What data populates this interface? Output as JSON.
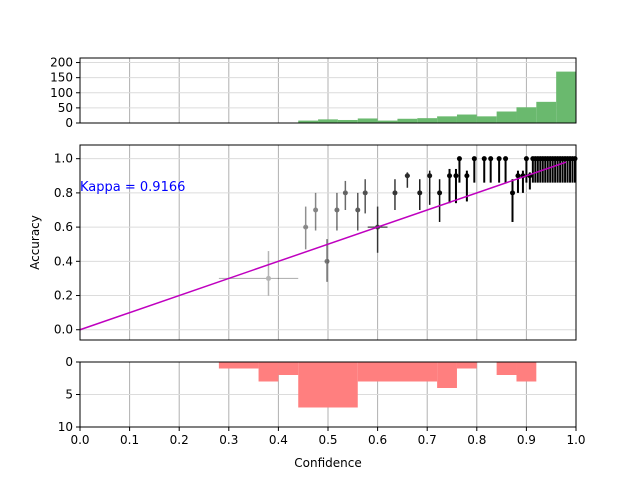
{
  "chart_data": [
    {
      "type": "bar",
      "panel": "confidence-histogram-correct",
      "color": "#6ab96e",
      "ylim": [
        0,
        215
      ],
      "yticks": [
        "0",
        "50",
        "100",
        "150",
        "200"
      ],
      "bins": [
        {
          "x0": 0.44,
          "x1": 0.48,
          "value": 8
        },
        {
          "x0": 0.48,
          "x1": 0.52,
          "value": 12
        },
        {
          "x0": 0.52,
          "x1": 0.56,
          "value": 10
        },
        {
          "x0": 0.56,
          "x1": 0.6,
          "value": 15
        },
        {
          "x0": 0.6,
          "x1": 0.64,
          "value": 8
        },
        {
          "x0": 0.64,
          "x1": 0.68,
          "value": 14
        },
        {
          "x0": 0.68,
          "x1": 0.72,
          "value": 16
        },
        {
          "x0": 0.72,
          "x1": 0.76,
          "value": 22
        },
        {
          "x0": 0.76,
          "x1": 0.8,
          "value": 28
        },
        {
          "x0": 0.8,
          "x1": 0.84,
          "value": 22
        },
        {
          "x0": 0.84,
          "x1": 0.88,
          "value": 38
        },
        {
          "x0": 0.88,
          "x1": 0.92,
          "value": 52
        },
        {
          "x0": 0.92,
          "x1": 0.96,
          "value": 70
        },
        {
          "x0": 0.96,
          "x1": 1.0,
          "value": 170
        }
      ]
    },
    {
      "type": "scatter",
      "panel": "reliability-diagram",
      "ylabel": "Accuracy",
      "xlim": [
        0,
        1
      ],
      "ylim": [
        -0.06,
        1.08
      ],
      "yticks": [
        "0.0",
        "0.2",
        "0.4",
        "0.6",
        "0.8",
        "1.0"
      ],
      "annotation": "Kappa = 0.9166",
      "annotation_color": "#0000ff",
      "line_color": "#bf00bf",
      "line": [
        [
          0,
          0
        ],
        [
          0.98,
          0.98
        ]
      ],
      "points": [
        {
          "x": 0.38,
          "y": 0.3,
          "ylo": 0.2,
          "yhi": 0.46,
          "xlo": 0.28,
          "xhi": 0.44
        },
        {
          "x": 0.455,
          "y": 0.6,
          "ylo": 0.47,
          "yhi": 0.72
        },
        {
          "x": 0.475,
          "y": 0.7,
          "ylo": 0.58,
          "yhi": 0.8
        },
        {
          "x": 0.498,
          "y": 0.4,
          "ylo": 0.28,
          "yhi": 0.53
        },
        {
          "x": 0.518,
          "y": 0.7,
          "ylo": 0.58,
          "yhi": 0.8
        },
        {
          "x": 0.535,
          "y": 0.8,
          "ylo": 0.7,
          "yhi": 0.87
        },
        {
          "x": 0.56,
          "y": 0.7,
          "ylo": 0.58,
          "yhi": 0.8
        },
        {
          "x": 0.575,
          "y": 0.8,
          "ylo": 0.68,
          "yhi": 0.88
        },
        {
          "x": 0.6,
          "y": 0.6,
          "ylo": 0.45,
          "yhi": 0.72,
          "xlo": 0.58,
          "xhi": 0.62
        },
        {
          "x": 0.635,
          "y": 0.8,
          "ylo": 0.7,
          "yhi": 0.88
        },
        {
          "x": 0.66,
          "y": 0.9,
          "ylo": 0.83,
          "yhi": 0.92,
          "xlo": 0.655,
          "xhi": 0.665
        },
        {
          "x": 0.685,
          "y": 0.8,
          "ylo": 0.7,
          "yhi": 0.88
        },
        {
          "x": 0.705,
          "y": 0.9,
          "ylo": 0.73,
          "yhi": 0.93
        },
        {
          "x": 0.725,
          "y": 0.8,
          "ylo": 0.63,
          "yhi": 0.88
        },
        {
          "x": 0.745,
          "y": 0.9,
          "ylo": 0.74,
          "yhi": 0.94
        },
        {
          "x": 0.758,
          "y": 0.9,
          "ylo": 0.74,
          "yhi": 0.94
        },
        {
          "x": 0.765,
          "y": 1.0,
          "ylo": 0.86,
          "yhi": 1.0
        },
        {
          "x": 0.78,
          "y": 0.9,
          "ylo": 0.75,
          "yhi": 0.93
        },
        {
          "x": 0.795,
          "y": 1.0,
          "ylo": 0.86,
          "yhi": 1.0
        },
        {
          "x": 0.815,
          "y": 1.0,
          "ylo": 0.86,
          "yhi": 1.0
        },
        {
          "x": 0.828,
          "y": 1.0,
          "ylo": 0.86,
          "yhi": 1.0
        },
        {
          "x": 0.845,
          "y": 1.0,
          "ylo": 0.86,
          "yhi": 1.0
        },
        {
          "x": 0.858,
          "y": 1.0,
          "ylo": 0.86,
          "yhi": 1.0
        },
        {
          "x": 0.872,
          "y": 0.8,
          "ylo": 0.63,
          "yhi": 0.88
        },
        {
          "x": 0.883,
          "y": 0.9,
          "ylo": 0.8,
          "yhi": 0.93
        },
        {
          "x": 0.893,
          "y": 0.9,
          "ylo": 0.8,
          "yhi": 0.93
        },
        {
          "x": 0.9,
          "y": 1.0,
          "ylo": 0.86,
          "yhi": 1.0
        },
        {
          "x": 0.907,
          "y": 0.9,
          "ylo": 0.82,
          "yhi": 0.92
        },
        {
          "x": 0.913,
          "y": 1.0,
          "ylo": 0.86,
          "yhi": 1.0
        },
        {
          "x": 0.918,
          "y": 1.0,
          "ylo": 0.86,
          "yhi": 1.0
        },
        {
          "x": 0.923,
          "y": 1.0,
          "ylo": 0.86,
          "yhi": 1.0
        },
        {
          "x": 0.928,
          "y": 1.0,
          "ylo": 0.86,
          "yhi": 1.0
        },
        {
          "x": 0.933,
          "y": 1.0,
          "ylo": 0.86,
          "yhi": 1.0
        },
        {
          "x": 0.938,
          "y": 1.0,
          "ylo": 0.86,
          "yhi": 1.0
        },
        {
          "x": 0.943,
          "y": 1.0,
          "ylo": 0.86,
          "yhi": 1.0
        },
        {
          "x": 0.948,
          "y": 1.0,
          "ylo": 0.86,
          "yhi": 1.0
        },
        {
          "x": 0.953,
          "y": 1.0,
          "ylo": 0.86,
          "yhi": 1.0
        },
        {
          "x": 0.958,
          "y": 1.0,
          "ylo": 0.86,
          "yhi": 1.0
        },
        {
          "x": 0.963,
          "y": 1.0,
          "ylo": 0.86,
          "yhi": 1.0
        },
        {
          "x": 0.968,
          "y": 1.0,
          "ylo": 0.86,
          "yhi": 1.0
        },
        {
          "x": 0.973,
          "y": 1.0,
          "ylo": 0.86,
          "yhi": 1.0
        },
        {
          "x": 0.978,
          "y": 1.0,
          "ylo": 0.86,
          "yhi": 1.0
        },
        {
          "x": 0.983,
          "y": 1.0,
          "ylo": 0.86,
          "yhi": 1.0
        },
        {
          "x": 0.988,
          "y": 1.0,
          "ylo": 0.86,
          "yhi": 1.0
        },
        {
          "x": 0.993,
          "y": 1.0,
          "ylo": 0.86,
          "yhi": 1.0
        },
        {
          "x": 0.998,
          "y": 1.0,
          "ylo": 0.86,
          "yhi": 1.0
        }
      ]
    },
    {
      "type": "bar",
      "panel": "confidence-histogram-incorrect",
      "color": "#ff7f7f",
      "inverted": true,
      "xlabel": "Confidence",
      "ylim": [
        0,
        10
      ],
      "yticks": [
        "0",
        "5",
        "10"
      ],
      "xticks": [
        "0.0",
        "0.1",
        "0.2",
        "0.3",
        "0.4",
        "0.5",
        "0.6",
        "0.7",
        "0.8",
        "0.9",
        "1.0"
      ],
      "bins": [
        {
          "x0": 0.28,
          "x1": 0.36,
          "value": 1
        },
        {
          "x0": 0.36,
          "x1": 0.4,
          "value": 3
        },
        {
          "x0": 0.4,
          "x1": 0.44,
          "value": 2
        },
        {
          "x0": 0.44,
          "x1": 0.56,
          "value": 7
        },
        {
          "x0": 0.56,
          "x1": 0.72,
          "value": 3
        },
        {
          "x0": 0.72,
          "x1": 0.76,
          "value": 4
        },
        {
          "x0": 0.76,
          "x1": 0.8,
          "value": 1
        },
        {
          "x0": 0.84,
          "x1": 0.88,
          "value": 2
        },
        {
          "x0": 0.88,
          "x1": 0.92,
          "value": 3
        }
      ]
    }
  ]
}
